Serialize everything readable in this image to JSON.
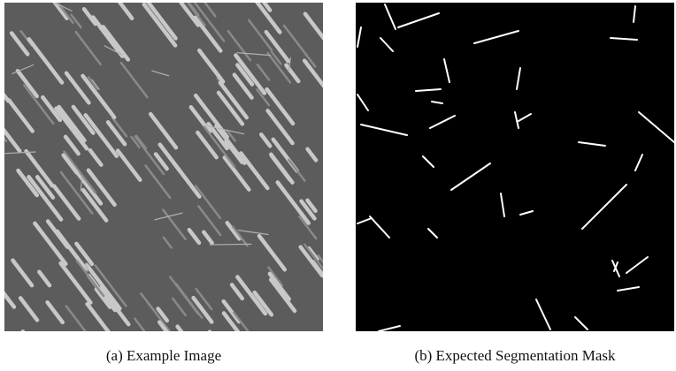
{
  "figure": {
    "subfigures": [
      {
        "caption": "(a) Example Image"
      },
      {
        "caption": "(b) Expected Segmentation Mask"
      }
    ]
  }
}
